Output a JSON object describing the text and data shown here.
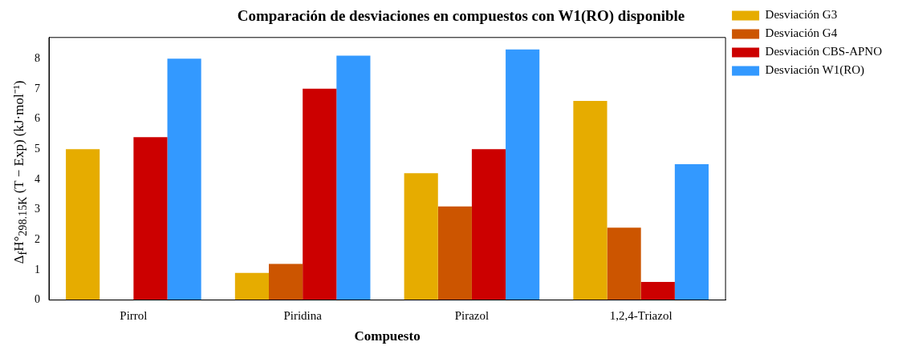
{
  "chart_data": {
    "type": "bar",
    "title": "Comparación de desviaciones en compuestos con W1(RO) disponible",
    "xlabel": "Compuesto",
    "ylabel": "Δ$_{f}$H°$_{298.15K}$ (T − Exp) (kJ·mol⁻¹)",
    "categories": [
      "Pirrol",
      "Piridina",
      "Pirazol",
      "1,2,4-Triazol"
    ],
    "series": [
      {
        "name": "Desviación G3",
        "color": "#e6ac00",
        "values": [
          5.0,
          0.9,
          4.2,
          6.6
        ]
      },
      {
        "name": "Desviación G4",
        "color": "#cc5500",
        "values": [
          0,
          1.2,
          3.1,
          2.4
        ]
      },
      {
        "name": "Desviación CBS-APNO",
        "color": "#cc0000",
        "values": [
          5.4,
          7.0,
          5.0,
          0.6
        ]
      },
      {
        "name": "Desviación W1(RO)",
        "color": "#3399ff",
        "values": [
          8.0,
          8.1,
          8.3,
          4.5
        ]
      }
    ],
    "ylim": [
      0,
      8.7
    ],
    "yticks": [
      0,
      1,
      2,
      3,
      4,
      5,
      6,
      7,
      8
    ],
    "grid": false,
    "legend": "right"
  }
}
